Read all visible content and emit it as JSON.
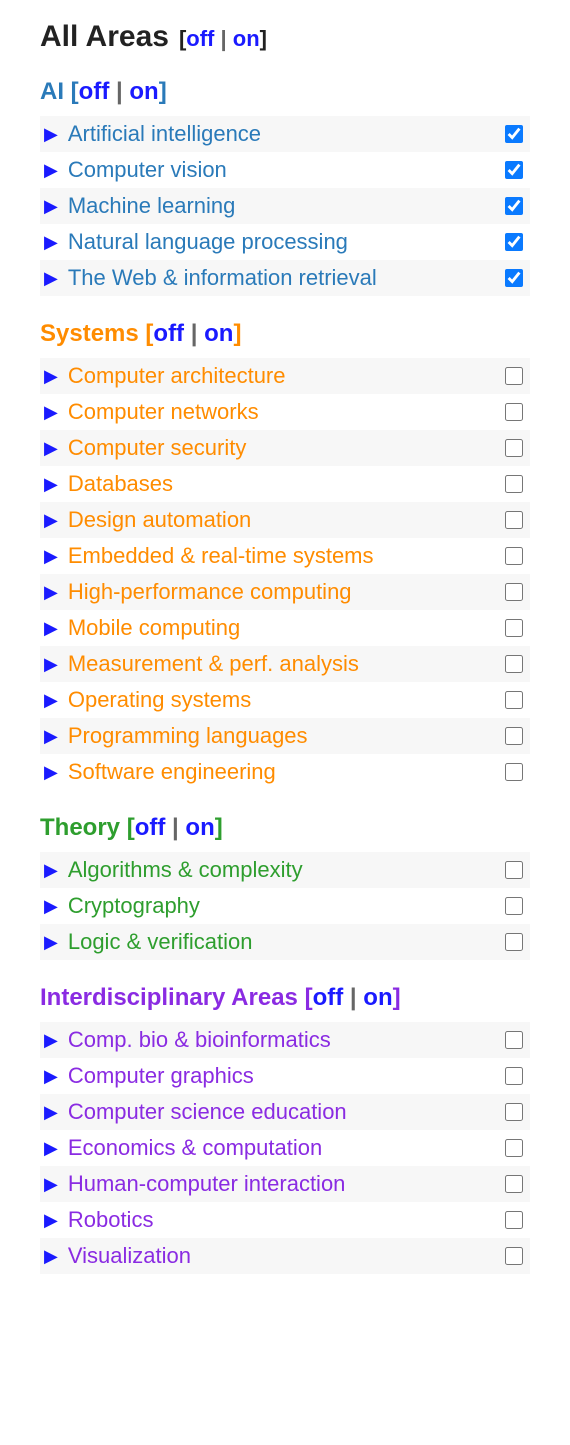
{
  "title": "All Areas",
  "off_label": "off",
  "on_label": "on",
  "groups": [
    {
      "key": "ai",
      "title": "AI",
      "color_class": "c-ai",
      "items": [
        {
          "label": "Artificial intelligence",
          "checked": true
        },
        {
          "label": "Computer vision",
          "checked": true
        },
        {
          "label": "Machine learning",
          "checked": true
        },
        {
          "label": "Natural language processing",
          "checked": true
        },
        {
          "label": "The Web & information retrieval",
          "checked": true
        }
      ]
    },
    {
      "key": "systems",
      "title": "Systems",
      "color_class": "c-systems",
      "items": [
        {
          "label": "Computer architecture",
          "checked": false
        },
        {
          "label": "Computer networks",
          "checked": false
        },
        {
          "label": "Computer security",
          "checked": false
        },
        {
          "label": "Databases",
          "checked": false
        },
        {
          "label": "Design automation",
          "checked": false
        },
        {
          "label": "Embedded & real-time systems",
          "checked": false
        },
        {
          "label": "High-performance computing",
          "checked": false
        },
        {
          "label": "Mobile computing",
          "checked": false
        },
        {
          "label": "Measurement & perf. analysis",
          "checked": false
        },
        {
          "label": "Operating systems",
          "checked": false
        },
        {
          "label": "Programming languages",
          "checked": false
        },
        {
          "label": "Software engineering",
          "checked": false
        }
      ]
    },
    {
      "key": "theory",
      "title": "Theory",
      "color_class": "c-theory",
      "items": [
        {
          "label": "Algorithms & complexity",
          "checked": false
        },
        {
          "label": "Cryptography",
          "checked": false
        },
        {
          "label": "Logic & verification",
          "checked": false
        }
      ]
    },
    {
      "key": "inter",
      "title": "Interdisciplinary Areas",
      "color_class": "c-inter",
      "items": [
        {
          "label": "Comp. bio & bioinformatics",
          "checked": false
        },
        {
          "label": "Computer graphics",
          "checked": false
        },
        {
          "label": "Computer science education",
          "checked": false
        },
        {
          "label": "Economics & computation",
          "checked": false
        },
        {
          "label": "Human-computer interaction",
          "checked": false
        },
        {
          "label": "Robotics",
          "checked": false
        },
        {
          "label": "Visualization",
          "checked": false
        }
      ]
    }
  ]
}
